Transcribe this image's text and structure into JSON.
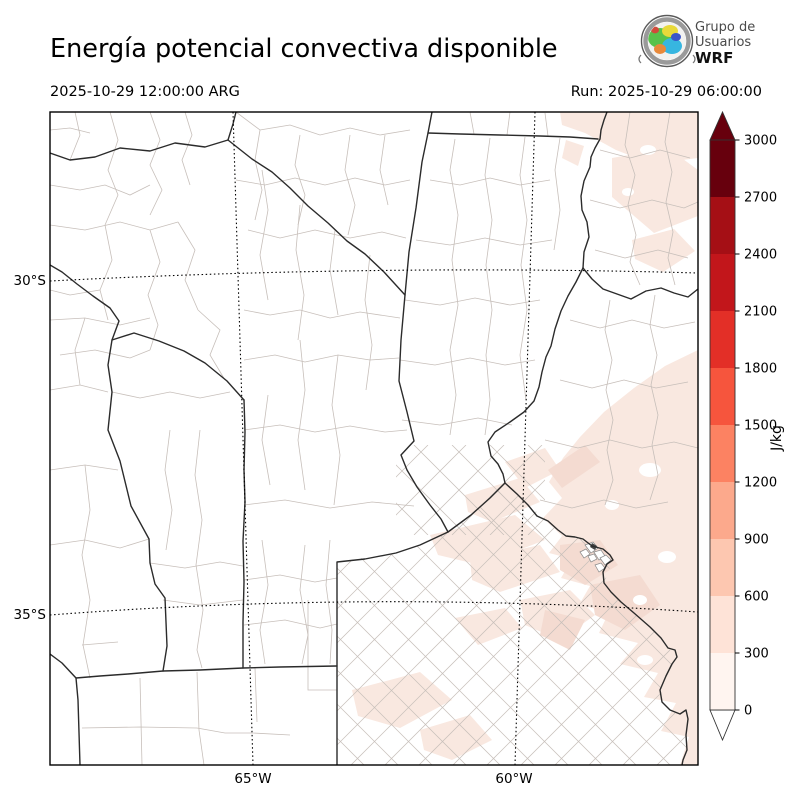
{
  "header": {
    "title": "Energía potencial convectiva disponible",
    "valid_time": "2025-10-29 12:00:00 ARG",
    "run_time": "Run: 2025-10-29 06:00:00",
    "logo": {
      "line1": "Grupo de",
      "line2": "Usuarios",
      "line3": "WRF"
    }
  },
  "map": {
    "x_axis": {
      "ticks": {
        "t0": "65°W",
        "t1": "60°W"
      }
    },
    "y_axis": {
      "ticks": {
        "t0": "30°S",
        "t1": "35°S"
      }
    },
    "shading_levels": {
      "level_0_300": "#f9e8e0",
      "level_300_600": "#f4dbd1"
    }
  },
  "colorbar": {
    "unit": "J/kg",
    "tick_labels": [
      "3000",
      "2700",
      "2400",
      "2100",
      "1800",
      "1500",
      "1200",
      "900",
      "600",
      "300",
      "0"
    ],
    "segment_colors_top_to_bottom": [
      "#67000d",
      "#a50f15",
      "#c2161b",
      "#e32f27",
      "#f6553d",
      "#fc8262",
      "#fca98c",
      "#fdc7b0",
      "#fee3d7",
      "#fff5f0"
    ],
    "over_arrow_color": "#67000d",
    "under_arrow_color": "#ffffff"
  }
}
